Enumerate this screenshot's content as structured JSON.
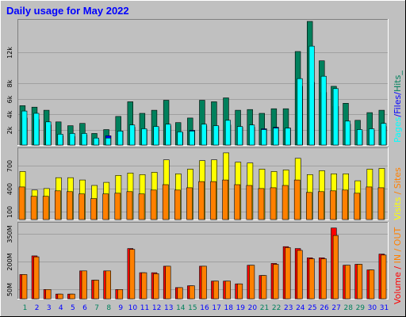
{
  "title": "Daily usage for May 2022",
  "colors": {
    "background": "#C0C0C0",
    "title": "#0000FF",
    "hits": "#00805C",
    "files": "#0000FF",
    "pages": "#00FFFF",
    "visits": "#FFFF00",
    "sites": "#FF8000",
    "kbytes_in": "#FF0000",
    "kbytes_out": "#FF8000",
    "volume": "#FF0000",
    "weekend_day": "#00805C",
    "weekday": "#0000FF"
  },
  "legends": {
    "top": [
      {
        "text": "Pages",
        "color": "#00FFFF"
      },
      {
        "text": "/",
        "color": "#0000FF"
      },
      {
        "text": "Files",
        "color": "#0000FF"
      },
      {
        "text": "/",
        "color": "#0000FF"
      },
      {
        "text": "Hits",
        "color": "#00805C"
      },
      {
        "text": "_",
        "color": "#00805C"
      }
    ],
    "middle": [
      {
        "text": "Visits",
        "color": "#FFFF00"
      },
      {
        "text": " / ",
        "color": "#FF8000"
      },
      {
        "text": "Sites",
        "color": "#FF8000"
      }
    ],
    "right_bottom": [
      {
        "text": "Volume",
        "color": "#FF0000"
      },
      {
        "text": " / ",
        "color": "#FF0000"
      },
      {
        "text": "IN",
        "color": "#FF8000"
      },
      {
        "text": " / ",
        "color": "#FF8000"
      },
      {
        "text": "OUT",
        "color": "#FF8000"
      }
    ]
  },
  "chart_data": [
    {
      "type": "bar",
      "name": "top-panel",
      "categories": [
        "1",
        "2",
        "3",
        "4",
        "5",
        "6",
        "7",
        "8",
        "9",
        "10",
        "11",
        "12",
        "13",
        "14",
        "15",
        "16",
        "17",
        "18",
        "19",
        "20",
        "21",
        "22",
        "23",
        "24",
        "25",
        "26",
        "27",
        "28",
        "29",
        "30",
        "31"
      ],
      "weekend": [
        "1",
        "7",
        "8",
        "14",
        "15",
        "21",
        "22",
        "28",
        "29"
      ],
      "yticks": [
        "2k",
        "4k",
        "6k",
        "8k",
        "12k"
      ],
      "ytick_values": [
        2000,
        4000,
        6000,
        8000,
        12000
      ],
      "ylim": [
        0,
        16000
      ],
      "series": [
        {
          "name": "Hits",
          "values": [
            5100,
            4900,
            4500,
            3000,
            2500,
            2800,
            1500,
            2000,
            3700,
            5600,
            4100,
            4500,
            5800,
            2900,
            3500,
            5800,
            5600,
            6100,
            4500,
            4600,
            4100,
            4700,
            4700,
            12100,
            16000,
            10900,
            7600,
            5400,
            3200,
            4200,
            4500
          ]
        },
        {
          "name": "Files",
          "values": [
            3500,
            3300,
            2600,
            1200,
            1100,
            1300,
            700,
            1200,
            1800,
            2300,
            2000,
            2300,
            2500,
            1600,
            1900,
            2500,
            2400,
            2600,
            2300,
            2300,
            2100,
            2300,
            2200,
            7600,
            8100,
            6800,
            5000,
            2700,
            1800,
            1900,
            2400
          ]
        },
        {
          "name": "Pages",
          "values": [
            4400,
            4100,
            3000,
            1400,
            1500,
            1500,
            900,
            900,
            1800,
            2600,
            2100,
            2400,
            2700,
            1700,
            1800,
            2700,
            2500,
            3200,
            2400,
            2600,
            2000,
            2200,
            2200,
            8600,
            12800,
            8900,
            7300,
            3100,
            2000,
            2100,
            2800
          ]
        }
      ]
    },
    {
      "type": "bar",
      "name": "middle-panel",
      "categories": [
        "1",
        "2",
        "3",
        "4",
        "5",
        "6",
        "7",
        "8",
        "9",
        "10",
        "11",
        "12",
        "13",
        "14",
        "15",
        "16",
        "17",
        "18",
        "19",
        "20",
        "21",
        "22",
        "23",
        "24",
        "25",
        "26",
        "27",
        "28",
        "29",
        "30",
        "31"
      ],
      "yticks": [
        "100",
        "400",
        "700"
      ],
      "ytick_values": [
        100,
        400,
        700
      ],
      "ylim": [
        0,
        900
      ],
      "series": [
        {
          "name": "Visits",
          "values": [
            620,
            380,
            400,
            540,
            540,
            510,
            440,
            480,
            570,
            600,
            580,
            610,
            770,
            590,
            650,
            760,
            770,
            860,
            740,
            730,
            650,
            620,
            640,
            790,
            580,
            630,
            590,
            590,
            500,
            650,
            660
          ]
        },
        {
          "name": "Sites",
          "values": [
            420,
            300,
            300,
            370,
            360,
            330,
            270,
            330,
            340,
            360,
            330,
            380,
            450,
            380,
            410,
            490,
            490,
            510,
            450,
            440,
            400,
            410,
            440,
            510,
            350,
            360,
            370,
            380,
            340,
            420,
            410
          ]
        }
      ]
    },
    {
      "type": "bar",
      "name": "bottom-panel",
      "categories": [
        "1",
        "2",
        "3",
        "4",
        "5",
        "6",
        "7",
        "8",
        "9",
        "10",
        "11",
        "12",
        "13",
        "14",
        "15",
        "16",
        "17",
        "18",
        "19",
        "20",
        "21",
        "22",
        "23",
        "24",
        "25",
        "26",
        "27",
        "28",
        "29",
        "30",
        "31"
      ],
      "yticks": [
        "50M",
        "200M",
        "350M"
      ],
      "ytick_values": [
        50,
        200,
        350
      ],
      "ylim": [
        0,
        400
      ],
      "series": [
        {
          "name": "Volume",
          "values": [
            130,
            230,
            50,
            25,
            25,
            150,
            100,
            150,
            50,
            270,
            140,
            140,
            175,
            60,
            70,
            175,
            95,
            95,
            80,
            180,
            125,
            190,
            280,
            270,
            220,
            220,
            380,
            180,
            185,
            155,
            240
          ]
        },
        {
          "name": "OUT",
          "values": [
            130,
            225,
            50,
            25,
            25,
            150,
            100,
            150,
            50,
            265,
            140,
            135,
            175,
            60,
            70,
            175,
            95,
            95,
            80,
            180,
            125,
            185,
            275,
            260,
            215,
            215,
            340,
            180,
            185,
            155,
            235
          ]
        }
      ]
    }
  ]
}
